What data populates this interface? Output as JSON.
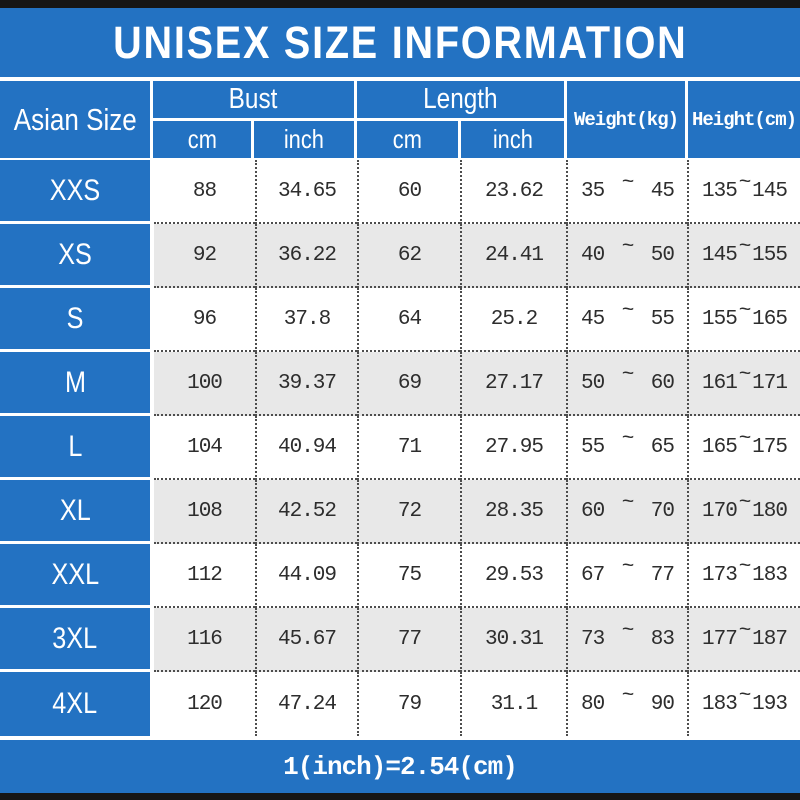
{
  "title": "UNISEX SIZE INFORMATION",
  "footer_note": "1(inch)=2.54(cm)",
  "tilde": "~",
  "header": {
    "size_col": "Asian Size",
    "bust_group": "Bust",
    "length_group": "Length",
    "cm": "cm",
    "inch": "inch",
    "weight": "Weight(kg)",
    "height": "Height(cm)"
  },
  "colors": {
    "blue": "#2372c2",
    "row_alt": "#e8e8e8",
    "bar_black": "#161616",
    "text_dark": "#2d2d2d",
    "text_light": "#ffffff"
  },
  "chart_data": {
    "type": "table",
    "title": "UNISEX SIZE INFORMATION",
    "column_groups": [
      {
        "label": "Bust",
        "span": 2
      },
      {
        "label": "Length",
        "span": 2
      }
    ],
    "columns": [
      "Asian Size",
      "Bust cm",
      "Bust inch",
      "Length cm",
      "Length inch",
      "Weight(kg)",
      "Height(cm)"
    ],
    "rows": [
      {
        "size": "XXS",
        "bust_cm": "88",
        "bust_inch": "34.65",
        "length_cm": "60",
        "length_inch": "23.62",
        "weight_min": "35",
        "weight_max": "45",
        "height_min": "135",
        "height_max": "145"
      },
      {
        "size": "XS",
        "bust_cm": "92",
        "bust_inch": "36.22",
        "length_cm": "62",
        "length_inch": "24.41",
        "weight_min": "40",
        "weight_max": "50",
        "height_min": "145",
        "height_max": "155"
      },
      {
        "size": "S",
        "bust_cm": "96",
        "bust_inch": "37.8",
        "length_cm": "64",
        "length_inch": "25.2",
        "weight_min": "45",
        "weight_max": "55",
        "height_min": "155",
        "height_max": "165"
      },
      {
        "size": "M",
        "bust_cm": "100",
        "bust_inch": "39.37",
        "length_cm": "69",
        "length_inch": "27.17",
        "weight_min": "50",
        "weight_max": "60",
        "height_min": "161",
        "height_max": "171"
      },
      {
        "size": "L",
        "bust_cm": "104",
        "bust_inch": "40.94",
        "length_cm": "71",
        "length_inch": "27.95",
        "weight_min": "55",
        "weight_max": "65",
        "height_min": "165",
        "height_max": "175"
      },
      {
        "size": "XL",
        "bust_cm": "108",
        "bust_inch": "42.52",
        "length_cm": "72",
        "length_inch": "28.35",
        "weight_min": "60",
        "weight_max": "70",
        "height_min": "170",
        "height_max": "180"
      },
      {
        "size": "XXL",
        "bust_cm": "112",
        "bust_inch": "44.09",
        "length_cm": "75",
        "length_inch": "29.53",
        "weight_min": "67",
        "weight_max": "77",
        "height_min": "173",
        "height_max": "183"
      },
      {
        "size": "3XL",
        "bust_cm": "116",
        "bust_inch": "45.67",
        "length_cm": "77",
        "length_inch": "30.31",
        "weight_min": "73",
        "weight_max": "83",
        "height_min": "177",
        "height_max": "187"
      },
      {
        "size": "4XL",
        "bust_cm": "120",
        "bust_inch": "47.24",
        "length_cm": "79",
        "length_inch": "31.1",
        "weight_min": "80",
        "weight_max": "90",
        "height_min": "183",
        "height_max": "193"
      }
    ],
    "footnote": "1(inch)=2.54(cm)"
  }
}
